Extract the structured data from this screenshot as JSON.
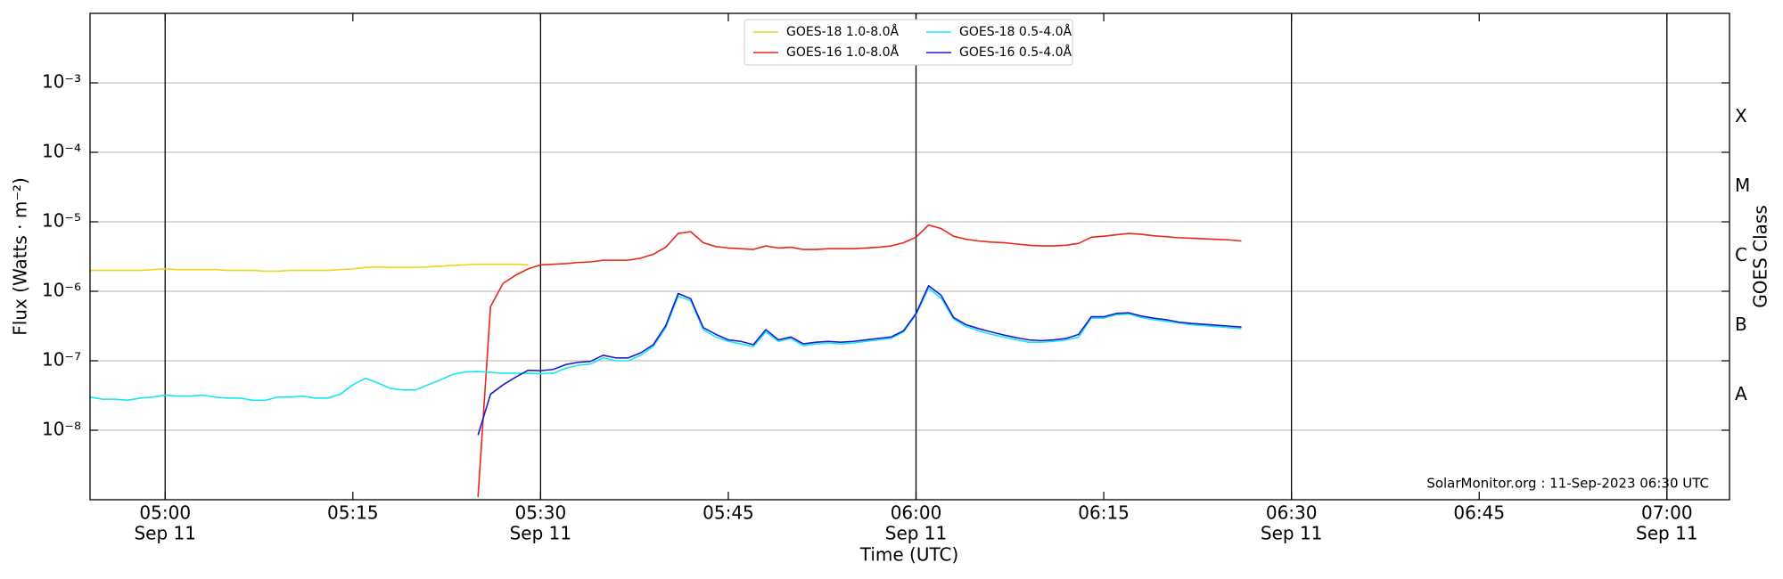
{
  "chart_data": {
    "type": "line",
    "xlabel": "Time (UTC)",
    "ylabel": "Flux (Watts · m⁻²)",
    "y2label": "GOES Class",
    "annotation": "SolarMonitor.org : 11-Sep-2023 06:30 UTC",
    "log_y": true,
    "grid": "y",
    "legend": "upper center",
    "xlim": [
      "04:54",
      "07:05"
    ],
    "xticks": [
      {
        "value": "05:00",
        "label": "05:00",
        "sublabel": "Sep 11"
      },
      "05:15",
      {
        "value": "05:30",
        "label": "05:30",
        "sublabel": "Sep 11"
      },
      "05:45",
      {
        "value": "06:00",
        "label": "06:00",
        "sublabel": "Sep 11"
      },
      "06:15",
      {
        "value": "06:30",
        "label": "06:30",
        "sublabel": "Sep 11"
      },
      "06:45",
      {
        "value": "07:00",
        "label": "07:00",
        "sublabel": "Sep 11"
      }
    ],
    "vlines": [
      "05:00",
      "05:30",
      "06:00",
      "06:30",
      "07:00"
    ],
    "ylim": [
      1e-09,
      0.01
    ],
    "yticks": [
      {
        "value": 0.001,
        "label": "10⁻³"
      },
      {
        "value": 0.0001,
        "label": "10⁻⁴"
      },
      {
        "value": 1e-05,
        "label": "10⁻⁵"
      },
      {
        "value": 1e-06,
        "label": "10⁻⁶"
      },
      {
        "value": 1e-07,
        "label": "10⁻⁷"
      },
      {
        "value": 1e-08,
        "label": "10⁻⁸"
      }
    ],
    "y2lim": [
      1e-09,
      0.01
    ],
    "y2ticks": [
      {
        "value": 3.2e-08,
        "label": "A"
      },
      {
        "value": 3.2e-07,
        "label": "B"
      },
      {
        "value": 3.2e-06,
        "label": "C"
      },
      {
        "value": 3.2e-05,
        "label": "M"
      },
      {
        "value": 0.00032,
        "label": "X"
      }
    ],
    "x": [
      "04:54",
      "04:55",
      "04:56",
      "04:57",
      "04:58",
      "04:59",
      "05:00",
      "05:01",
      "05:02",
      "05:03",
      "05:04",
      "05:05",
      "05:06",
      "05:07",
      "05:08",
      "05:09",
      "05:10",
      "05:11",
      "05:12",
      "05:13",
      "05:14",
      "05:15",
      "05:16",
      "05:17",
      "05:18",
      "05:19",
      "05:20",
      "05:21",
      "05:22",
      "05:23",
      "05:24",
      "05:25",
      "05:26",
      "05:27",
      "05:28",
      "05:29",
      "05:30",
      "05:31",
      "05:32",
      "05:33",
      "05:34",
      "05:35",
      "05:36",
      "05:37",
      "05:38",
      "05:39",
      "05:40",
      "05:41",
      "05:42",
      "05:43",
      "05:44",
      "05:45",
      "05:46",
      "05:47",
      "05:48",
      "05:49",
      "05:50",
      "05:51",
      "05:52",
      "05:53",
      "05:54",
      "05:55",
      "05:56",
      "05:57",
      "05:58",
      "05:59",
      "06:00",
      "06:01",
      "06:02",
      "06:03",
      "06:04",
      "06:05",
      "06:06",
      "06:07",
      "06:08",
      "06:09",
      "06:10",
      "06:11",
      "06:12",
      "06:13",
      "06:14",
      "06:15",
      "06:16",
      "06:17",
      "06:18",
      "06:19",
      "06:20",
      "06:21",
      "06:22",
      "06:23",
      "06:24",
      "06:25",
      "06:26"
    ],
    "series": [
      {
        "name": "GOES-18 1.0-8.0Å",
        "color": "#f2d21a",
        "values": [
          2e-06,
          2e-06,
          2e-06,
          2e-06,
          2e-06,
          2.05e-06,
          2.1e-06,
          2.05e-06,
          2.05e-06,
          2.05e-06,
          2.05e-06,
          2e-06,
          2e-06,
          2e-06,
          1.95e-06,
          1.95e-06,
          2e-06,
          2e-06,
          2e-06,
          2e-06,
          2.05e-06,
          2.1e-06,
          2.2e-06,
          2.25e-06,
          2.2e-06,
          2.2e-06,
          2.2e-06,
          2.25e-06,
          2.3e-06,
          2.35e-06,
          2.4e-06,
          2.45e-06,
          2.45e-06,
          2.45e-06,
          2.45e-06,
          2.4e-06,
          null,
          null,
          null,
          null,
          null,
          null,
          null,
          null,
          null,
          null,
          null,
          null,
          null,
          null,
          null,
          null,
          null,
          null,
          null,
          null,
          null,
          null,
          null,
          null,
          null,
          null,
          null,
          null,
          null,
          null,
          null,
          null,
          null,
          null,
          null,
          null,
          null,
          null,
          null,
          null,
          null,
          null,
          null,
          null,
          null,
          null,
          null,
          null,
          null,
          null,
          null,
          null,
          null,
          null,
          null,
          null,
          null
        ]
      },
      {
        "name": "GOES-16 1.0-8.0Å",
        "color": "#e8261b",
        "values": [
          null,
          null,
          null,
          null,
          null,
          null,
          null,
          null,
          null,
          null,
          null,
          null,
          null,
          null,
          null,
          null,
          null,
          null,
          null,
          null,
          null,
          null,
          null,
          null,
          null,
          null,
          null,
          null,
          null,
          null,
          null,
          1.1e-09,
          6e-07,
          1.3e-06,
          1.7e-06,
          2.1e-06,
          2.4e-06,
          2.45e-06,
          2.5e-06,
          2.6e-06,
          2.65e-06,
          2.8e-06,
          2.8e-06,
          2.8e-06,
          3e-06,
          3.4e-06,
          4.3e-06,
          6.8e-06,
          7.2e-06,
          5e-06,
          4.4e-06,
          4.2e-06,
          4.1e-06,
          4e-06,
          4.5e-06,
          4.2e-06,
          4.3e-06,
          4e-06,
          4e-06,
          4.1e-06,
          4.1e-06,
          4.1e-06,
          4.2e-06,
          4.3e-06,
          4.5e-06,
          5e-06,
          6e-06,
          9e-06,
          8e-06,
          6.2e-06,
          5.6e-06,
          5.3e-06,
          5.1e-06,
          5e-06,
          4.8e-06,
          4.6e-06,
          4.5e-06,
          4.5e-06,
          4.6e-06,
          4.9e-06,
          6e-06,
          6.2e-06,
          6.5e-06,
          6.8e-06,
          6.6e-06,
          6.3e-06,
          6.1e-06,
          5.9e-06,
          5.8e-06,
          5.7e-06,
          5.6e-06,
          5.5e-06,
          5.3e-06
        ]
      },
      {
        "name": "GOES-18 0.5-4.0Å",
        "color": "#19e6f0",
        "values": [
          3e-08,
          2.8e-08,
          2.8e-08,
          2.7e-08,
          2.9e-08,
          3e-08,
          3.2e-08,
          3.1e-08,
          3.1e-08,
          3.2e-08,
          3e-08,
          2.9e-08,
          2.9e-08,
          2.7e-08,
          2.7e-08,
          3e-08,
          3e-08,
          3.1e-08,
          2.9e-08,
          2.9e-08,
          3.3e-08,
          4.5e-08,
          5.6e-08,
          4.8e-08,
          4e-08,
          3.8e-08,
          3.8e-08,
          4.5e-08,
          5.3e-08,
          6.4e-08,
          6.9e-08,
          7e-08,
          6.8e-08,
          6.6e-08,
          6.6e-08,
          6.6e-08,
          6.5e-08,
          6.6e-08,
          7.8e-08,
          8.6e-08,
          9e-08,
          1.1e-07,
          1e-07,
          1e-07,
          1.2e-07,
          1.6e-07,
          3e-07,
          8.5e-07,
          7.3e-07,
          2.8e-07,
          2.2e-07,
          1.9e-07,
          1.75e-07,
          1.6e-07,
          2.6e-07,
          1.9e-07,
          2.1e-07,
          1.65e-07,
          1.75e-07,
          1.8e-07,
          1.75e-07,
          1.8e-07,
          1.9e-07,
          2e-07,
          2.1e-07,
          2.6e-07,
          4.6e-07,
          1.1e-06,
          8e-07,
          4e-07,
          3.1e-07,
          2.7e-07,
          2.4e-07,
          2.2e-07,
          2e-07,
          1.85e-07,
          1.85e-07,
          1.9e-07,
          2e-07,
          2.2e-07,
          4.1e-07,
          4.1e-07,
          4.6e-07,
          4.7e-07,
          4.2e-07,
          3.9e-07,
          3.7e-07,
          3.5e-07,
          3.3e-07,
          3.2e-07,
          3.1e-07,
          3e-07,
          2.9e-07
        ]
      },
      {
        "name": "GOES-16 0.5-4.0Å",
        "color": "#1a1ad6",
        "values": [
          null,
          null,
          null,
          null,
          null,
          null,
          null,
          null,
          null,
          null,
          null,
          null,
          null,
          null,
          null,
          null,
          null,
          null,
          null,
          null,
          null,
          null,
          null,
          null,
          null,
          null,
          null,
          null,
          null,
          null,
          null,
          8.5e-09,
          3.3e-08,
          4.5e-08,
          5.8e-08,
          7.3e-08,
          7.2e-08,
          7.5e-08,
          8.8e-08,
          9.5e-08,
          9.8e-08,
          1.2e-07,
          1.1e-07,
          1.1e-07,
          1.3e-07,
          1.7e-07,
          3.2e-07,
          9.3e-07,
          7.8e-07,
          3e-07,
          2.4e-07,
          2e-07,
          1.9e-07,
          1.7e-07,
          2.8e-07,
          2e-07,
          2.2e-07,
          1.75e-07,
          1.85e-07,
          1.9e-07,
          1.85e-07,
          1.9e-07,
          2e-07,
          2.1e-07,
          2.2e-07,
          2.7e-07,
          4.8e-07,
          1.2e-06,
          8.8e-07,
          4.2e-07,
          3.3e-07,
          2.9e-07,
          2.6e-07,
          2.35e-07,
          2.15e-07,
          2e-07,
          1.95e-07,
          2e-07,
          2.1e-07,
          2.4e-07,
          4.3e-07,
          4.3e-07,
          4.8e-07,
          4.9e-07,
          4.4e-07,
          4.1e-07,
          3.9e-07,
          3.6e-07,
          3.45e-07,
          3.35e-07,
          3.25e-07,
          3.15e-07,
          3.05e-07
        ]
      }
    ]
  }
}
